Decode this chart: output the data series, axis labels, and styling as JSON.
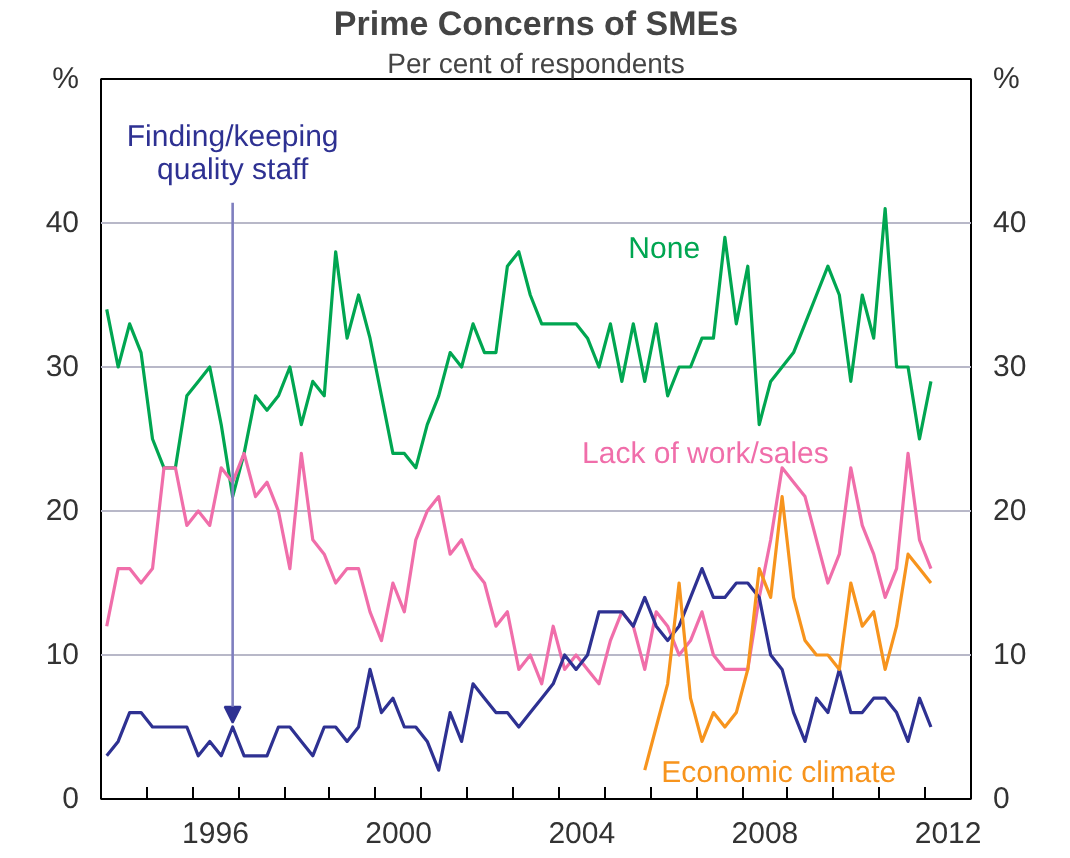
{
  "chart_data": {
    "type": "line",
    "title": "Prime Concerns of SMEs",
    "subtitle": "Per cent of respondents",
    "ylabel": "%",
    "y2label": "%",
    "x": [
      1994.125,
      1994.375,
      1994.625,
      1994.875,
      1995.125,
      1995.375,
      1995.625,
      1995.875,
      1996.125,
      1996.375,
      1996.625,
      1996.875,
      1997.125,
      1997.375,
      1997.625,
      1997.875,
      1998.125,
      1998.375,
      1998.625,
      1998.875,
      1999.125,
      1999.375,
      1999.625,
      1999.875,
      2000.125,
      2000.375,
      2000.625,
      2000.875,
      2001.125,
      2001.375,
      2001.625,
      2001.875,
      2002.125,
      2002.375,
      2002.625,
      2002.875,
      2003.125,
      2003.375,
      2003.625,
      2003.875,
      2004.125,
      2004.375,
      2004.625,
      2004.875,
      2005.125,
      2005.375,
      2005.625,
      2005.875,
      2006.125,
      2006.375,
      2006.625,
      2006.875,
      2007.125,
      2007.375,
      2007.625,
      2007.875,
      2008.125,
      2008.375,
      2008.625,
      2008.875,
      2009.125,
      2009.375,
      2009.625,
      2009.875,
      2010.125,
      2010.375,
      2010.625,
      2010.875,
      2011.125,
      2011.375,
      2011.625,
      2011.875,
      2012.125
    ],
    "series": [
      {
        "name": "None",
        "color": "#00a651",
        "values": [
          34,
          30,
          33,
          31,
          25,
          23,
          23,
          28,
          29,
          30,
          26,
          21,
          24,
          28,
          27,
          28,
          30,
          26,
          29,
          28,
          38,
          32,
          35,
          32,
          28,
          24,
          24,
          23,
          26,
          28,
          31,
          30,
          33,
          31,
          31,
          37,
          38,
          35,
          33,
          33,
          33,
          33,
          32,
          30,
          33,
          29,
          33,
          29,
          33,
          28,
          30,
          30,
          32,
          32,
          39,
          33,
          37,
          26,
          29,
          30,
          31,
          33,
          35,
          37,
          35,
          29,
          35,
          32,
          41,
          30,
          30,
          25,
          29
        ]
      },
      {
        "name": "Lack of work/sales",
        "color": "#f06eaa",
        "values": [
          12,
          16,
          16,
          15,
          16,
          23,
          23,
          19,
          20,
          19,
          23,
          22,
          24,
          21,
          22,
          20,
          16,
          24,
          18,
          17,
          15,
          16,
          16,
          13,
          11,
          15,
          13,
          18,
          20,
          21,
          17,
          18,
          16,
          15,
          12,
          13,
          9,
          10,
          8,
          12,
          9,
          10,
          9,
          8,
          11,
          13,
          12,
          9,
          13,
          12,
          10,
          11,
          13,
          10,
          9,
          9,
          9,
          14,
          18,
          23,
          22,
          21,
          18,
          15,
          17,
          23,
          19,
          17,
          14,
          16,
          24,
          18,
          16
        ]
      },
      {
        "color": "#2e3192",
        "values": [
          3,
          4,
          6,
          6,
          5,
          5,
          5,
          5,
          3,
          4,
          3,
          5,
          3,
          3,
          3,
          5,
          5,
          4,
          3,
          5,
          5,
          4,
          5,
          9,
          6,
          7,
          5,
          5,
          4,
          2,
          6,
          4,
          8,
          7,
          6,
          6,
          5,
          6,
          7,
          8,
          10,
          9,
          10,
          13,
          13,
          13,
          12,
          14,
          12,
          11,
          12,
          14,
          16,
          14,
          14,
          15,
          15,
          14,
          10,
          9,
          6,
          4,
          7,
          6,
          9,
          6,
          6,
          7,
          7,
          6,
          4,
          7,
          5
        ]
      },
      {
        "name": "Economic climate",
        "color": "#f7941d",
        "x": [
          2005.875,
          2006.125,
          2006.375,
          2006.625,
          2006.875,
          2007.125,
          2007.375,
          2007.625,
          2007.875,
          2008.125,
          2008.375,
          2008.625,
          2008.875,
          2009.125,
          2009.375,
          2009.625,
          2009.875,
          2010.125,
          2010.375,
          2010.625,
          2010.875,
          2011.125,
          2011.375,
          2011.625,
          2011.875,
          2012.125
        ],
        "values": [
          2,
          5,
          8,
          15,
          7,
          4,
          6,
          5,
          6,
          9,
          16,
          14,
          21,
          14,
          11,
          10,
          10,
          9,
          15,
          12,
          13,
          9,
          12,
          17,
          16,
          15
        ]
      }
    ],
    "annotations": [
      {
        "text": "Finding/keeping\nquality staff",
        "x": 1996.875,
        "y": 5
      }
    ],
    "xlim": [
      1994,
      2013
    ],
    "xticks": [
      {
        "value": 1995,
        "label": null
      },
      {
        "value": 1996,
        "label": null
      },
      {
        "value": 1996.5,
        "label": "1996"
      },
      {
        "value": 1997,
        "label": null
      },
      {
        "value": 1998,
        "label": null
      },
      {
        "value": 1999,
        "label": null
      },
      {
        "value": 2000,
        "label": null
      },
      {
        "value": 2000.5,
        "label": "2000"
      },
      {
        "value": 2001,
        "label": null
      },
      {
        "value": 2002,
        "label": null
      },
      {
        "value": 2003,
        "label": null
      },
      {
        "value": 2004,
        "label": null
      },
      {
        "value": 2004.5,
        "label": "2004"
      },
      {
        "value": 2005,
        "label": null
      },
      {
        "value": 2006,
        "label": null
      },
      {
        "value": 2007,
        "label": null
      },
      {
        "value": 2008,
        "label": null
      },
      {
        "value": 2008.5,
        "label": "2008"
      },
      {
        "value": 2009,
        "label": null
      },
      {
        "value": 2010,
        "label": null
      },
      {
        "value": 2011,
        "label": null
      },
      {
        "value": 2012,
        "label": null
      },
      {
        "value": 2012.5,
        "label": "2012"
      }
    ],
    "ylim": [
      0,
      50
    ],
    "yticks": [
      0,
      10,
      20,
      30,
      40
    ],
    "y2lim": [
      0,
      50
    ],
    "y2ticks": [
      0,
      10,
      20,
      30,
      40
    ],
    "grid": "y",
    "marker": "none",
    "line_style": "solid"
  }
}
